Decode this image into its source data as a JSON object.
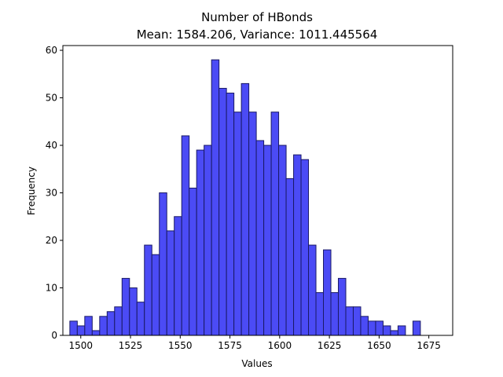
{
  "chart_data": {
    "type": "bar",
    "title": "Number of HBonds",
    "subtitle": "Mean: 1584.206, Variance: 1011.445564",
    "xlabel": "Values",
    "ylabel": "Frequency",
    "xlim": [
      1491,
      1687
    ],
    "ylim": [
      0,
      61
    ],
    "bin_start": 1494.5,
    "bin_width": 3.75,
    "values": [
      3,
      2,
      4,
      1,
      4,
      5,
      6,
      12,
      10,
      7,
      19,
      17,
      30,
      22,
      25,
      42,
      31,
      39,
      40,
      58,
      52,
      51,
      47,
      53,
      47,
      41,
      40,
      47,
      40,
      33,
      38,
      37,
      19,
      9,
      18,
      9,
      12,
      6,
      6,
      4,
      3,
      3,
      2,
      1,
      2,
      0,
      3
    ],
    "x_ticks": [
      "1500",
      "1525",
      "1550",
      "1575",
      "1600",
      "1625",
      "1650",
      "1675"
    ],
    "y_ticks": [
      "0",
      "10",
      "20",
      "30",
      "40",
      "50",
      "60"
    ],
    "bar_color": "#4b4bf5",
    "bar_edge_color": "#1a1a66",
    "grid": false,
    "legend": "none"
  }
}
